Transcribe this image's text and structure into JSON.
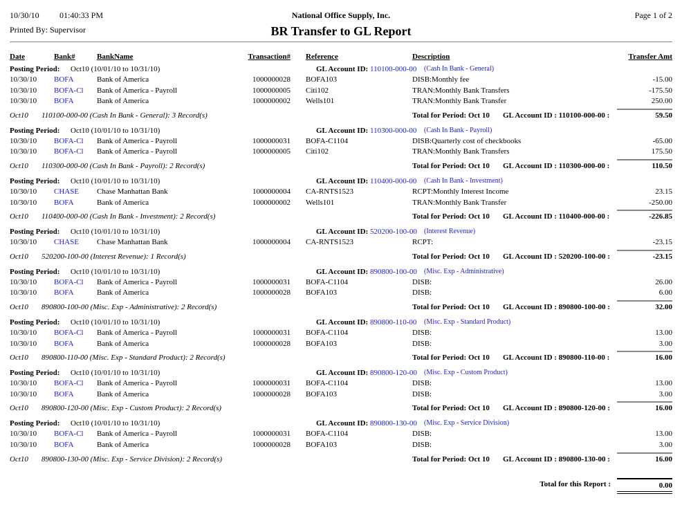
{
  "header": {
    "date": "10/30/10",
    "time": "01:40:33 PM",
    "printed_by": "Printed By: Supervisor",
    "company": "National Office Supply, Inc.",
    "title": "BR Transfer to GL Report",
    "page": "Page 1 of  2"
  },
  "columns": {
    "date": "Date",
    "bank": "Bank#",
    "bank_name": "BankName",
    "transaction": "Transaction#",
    "reference": "Reference",
    "description": "Description",
    "amount": "Transfer Amt"
  },
  "labels": {
    "posting_period": "Posting Period:",
    "period_value": "Oct10 (10/01/10 to 10/31/10)",
    "gl_account_label": "GL Account ID:",
    "total_for_period": "Total for Period: Oct 10",
    "report_total_label": "Total for this Report :"
  },
  "groups": [
    {
      "gl_id": "110100-000-00",
      "gl_name": "(Cash In Bank - General)",
      "rows": [
        {
          "date": "10/30/10",
          "bank": "BOFA",
          "bank_name": "Bank of America",
          "tx": "1000000028",
          "ref": "BOFA103",
          "desc": "DISB:Monthly fee",
          "amt": "-15.00"
        },
        {
          "date": "10/30/10",
          "bank": "BOFA-Cl",
          "bank_name": "Bank of America - Payroll",
          "tx": "1000000005",
          "ref": "Citi102",
          "desc": "TRAN:Monthly Bank Transfers",
          "amt": "-175.50"
        },
        {
          "date": "10/30/10",
          "bank": "BOFA",
          "bank_name": "Bank of America",
          "tx": "1000000002",
          "ref": "Wells101",
          "desc": "TRAN:Monthly Bank Transfer",
          "amt": "250.00"
        }
      ],
      "summary_period": "Oct10",
      "summary_text": "110100-000-00 (Cash In Bank - General): 3 Record(s)",
      "gl_total_label": "GL Account ID : 110100-000-00 :",
      "total": "59.50"
    },
    {
      "gl_id": "110300-000-00",
      "gl_name": "(Cash In Bank - Payroll)",
      "rows": [
        {
          "date": "10/30/10",
          "bank": "BOFA-Cl",
          "bank_name": "Bank of America - Payroll",
          "tx": "1000000031",
          "ref": "BOFA-C1104",
          "desc": "DISB:Quarterly cost of checkbooks",
          "amt": "-65.00"
        },
        {
          "date": "10/30/10",
          "bank": "BOFA-Cl",
          "bank_name": "Bank of America - Payroll",
          "tx": "1000000005",
          "ref": "Citi102",
          "desc": "TRAN:Monthly Bank Transfers",
          "amt": "175.50"
        }
      ],
      "summary_period": "Oct10",
      "summary_text": "110300-000-00 (Cash In Bank - Payroll): 2 Record(s)",
      "gl_total_label": "GL Account ID : 110300-000-00 :",
      "total": "110.50"
    },
    {
      "gl_id": "110400-000-00",
      "gl_name": "(Cash In Bank - Investment)",
      "rows": [
        {
          "date": "10/30/10",
          "bank": "CHASE",
          "bank_name": "Chase Manhattan Bank",
          "tx": "1000000004",
          "ref": "CA-RNTS1523",
          "desc": "RCPT:Monthly Interest Income",
          "amt": "23.15"
        },
        {
          "date": "10/30/10",
          "bank": "BOFA",
          "bank_name": "Bank of America",
          "tx": "1000000002",
          "ref": "Wells101",
          "desc": "TRAN:Monthly Bank Transfer",
          "amt": "-250.00"
        }
      ],
      "summary_period": "Oct10",
      "summary_text": "110400-000-00 (Cash In Bank - Investment): 2 Record(s)",
      "gl_total_label": "GL Account ID : 110400-000-00 :",
      "total": "-226.85"
    },
    {
      "gl_id": "520200-100-00",
      "gl_name": "(Interest Revenue)",
      "rows": [
        {
          "date": "10/30/10",
          "bank": "CHASE",
          "bank_name": "Chase Manhattan Bank",
          "tx": "1000000004",
          "ref": "CA-RNTS1523",
          "desc": "RCPT:",
          "amt": "-23.15"
        }
      ],
      "summary_period": "Oct10",
      "summary_text": "520200-100-00 (Interest Revenue): 1 Record(s)",
      "gl_total_label": "GL Account ID : 520200-100-00 :",
      "total": "-23.15"
    },
    {
      "gl_id": "890800-100-00",
      "gl_name": "(Misc. Exp - Administrative)",
      "rows": [
        {
          "date": "10/30/10",
          "bank": "BOFA-Cl",
          "bank_name": "Bank of America - Payroll",
          "tx": "1000000031",
          "ref": "BOFA-C1104",
          "desc": "DISB:",
          "amt": "26.00"
        },
        {
          "date": "10/30/10",
          "bank": "BOFA",
          "bank_name": "Bank of America",
          "tx": "1000000028",
          "ref": "BOFA103",
          "desc": "DISB:",
          "amt": "6.00"
        }
      ],
      "summary_period": "Oct10",
      "summary_text": "890800-100-00 (Misc. Exp - Administrative): 2 Record(s)",
      "gl_total_label": "GL Account ID : 890800-100-00 :",
      "total": "32.00"
    },
    {
      "gl_id": "890800-110-00",
      "gl_name": "(Misc. Exp - Standard Product)",
      "rows": [
        {
          "date": "10/30/10",
          "bank": "BOFA-Cl",
          "bank_name": "Bank of America - Payroll",
          "tx": "1000000031",
          "ref": "BOFA-C1104",
          "desc": "DISB:",
          "amt": "13.00"
        },
        {
          "date": "10/30/10",
          "bank": "BOFA",
          "bank_name": "Bank of America",
          "tx": "1000000028",
          "ref": "BOFA103",
          "desc": "DISB:",
          "amt": "3.00"
        }
      ],
      "summary_period": "Oct10",
      "summary_text": "890800-110-00 (Misc. Exp - Standard Product): 2 Record(s)",
      "gl_total_label": "GL Account ID : 890800-110-00 :",
      "total": "16.00"
    },
    {
      "gl_id": "890800-120-00",
      "gl_name": "(Misc. Exp - Custom Product)",
      "rows": [
        {
          "date": "10/30/10",
          "bank": "BOFA-Cl",
          "bank_name": "Bank of America - Payroll",
          "tx": "1000000031",
          "ref": "BOFA-C1104",
          "desc": "DISB:",
          "amt": "13.00"
        },
        {
          "date": "10/30/10",
          "bank": "BOFA",
          "bank_name": "Bank of America",
          "tx": "1000000028",
          "ref": "BOFA103",
          "desc": "DISB:",
          "amt": "3.00"
        }
      ],
      "summary_period": "Oct10",
      "summary_text": "890800-120-00 (Misc. Exp - Custom Product): 2 Record(s)",
      "gl_total_label": "GL Account ID : 890800-120-00 :",
      "total": "16.00"
    },
    {
      "gl_id": "890800-130-00",
      "gl_name": "(Misc. Exp - Service Division)",
      "rows": [
        {
          "date": "10/30/10",
          "bank": "BOFA-Cl",
          "bank_name": "Bank of America - Payroll",
          "tx": "1000000031",
          "ref": "BOFA-C1104",
          "desc": "DISB:",
          "amt": "13.00"
        },
        {
          "date": "10/30/10",
          "bank": "BOFA",
          "bank_name": "Bank of America",
          "tx": "1000000028",
          "ref": "BOFA103",
          "desc": "DISB:",
          "amt": "3.00"
        }
      ],
      "summary_period": "Oct10",
      "summary_text": "890800-130-00 (Misc. Exp - Service Division): 2 Record(s)",
      "gl_total_label": "GL Account ID : 890800-130-00 :",
      "total": "16.00"
    }
  ],
  "report_total": "0.00"
}
